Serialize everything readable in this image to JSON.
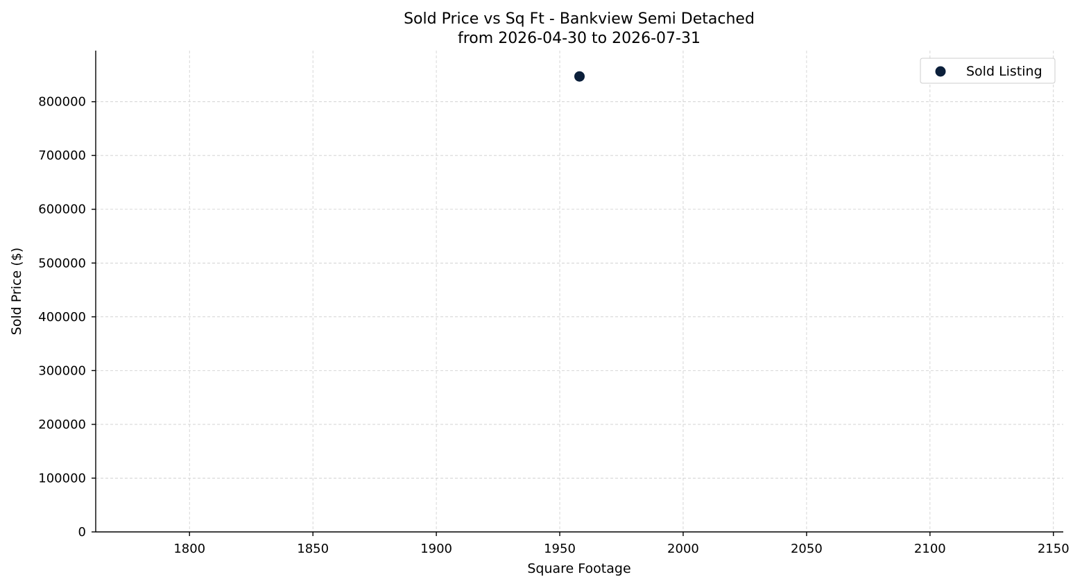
{
  "chart_data": {
    "type": "scatter",
    "title": "Sold Price vs Sq Ft - Bankview Semi Detached",
    "subtitle": "from 2026-04-30 to 2026-07-31",
    "xlabel": "Square Footage",
    "ylabel": "Sold Price ($)",
    "xlim": [
      1762,
      2154
    ],
    "ylim": [
      0,
      895000
    ],
    "xticks": [
      1800,
      1850,
      1900,
      1950,
      2000,
      2050,
      2100,
      2150
    ],
    "yticks": [
      0,
      100000,
      200000,
      300000,
      400000,
      500000,
      600000,
      700000,
      800000
    ],
    "grid": true,
    "legend_position": "top-right",
    "series": [
      {
        "name": "Sold Listing",
        "color": "#0b1f3a",
        "points": [
          {
            "x": 1958,
            "y": 847000
          }
        ]
      }
    ]
  }
}
